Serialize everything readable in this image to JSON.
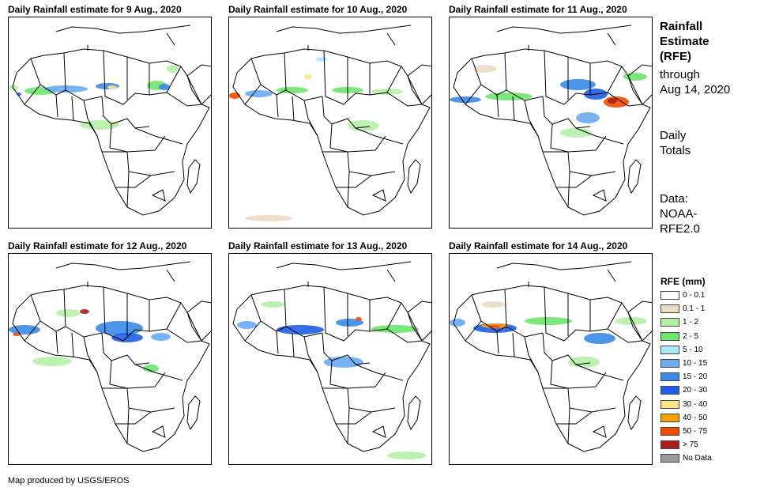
{
  "panels": [
    {
      "title": "Daily Rainfall estimate for 9 Aug., 2020"
    },
    {
      "title": "Daily Rainfall estimate for 10 Aug., 2020"
    },
    {
      "title": "Daily Rainfall estimate for 11 Aug., 2020"
    },
    {
      "title": "Daily Rainfall estimate for 12 Aug., 2020"
    },
    {
      "title": "Daily Rainfall estimate for 13 Aug., 2020"
    },
    {
      "title": "Daily Rainfall estimate for 14 Aug., 2020"
    }
  ],
  "side": {
    "title_lines": [
      "Rainfall",
      "Estimate",
      "(RFE)"
    ],
    "through_lines": [
      "through",
      "Aug 14, 2020"
    ],
    "totals_lines": [
      "Daily",
      "Totals"
    ],
    "data_lines": [
      "Data:",
      "NOAA-",
      "RFE2.0"
    ]
  },
  "legend": {
    "title": "RFE (mm)",
    "items": [
      {
        "label": "0 - 0.1",
        "color": "#ffffff"
      },
      {
        "label": "0.1 - 1",
        "color": "#ecdcc4"
      },
      {
        "label": "1 - 2",
        "color": "#b6f0a8"
      },
      {
        "label": "2 - 5",
        "color": "#6ee66e"
      },
      {
        "label": "5 - 10",
        "color": "#aeeaf6"
      },
      {
        "label": "10 - 15",
        "color": "#6aaaf2"
      },
      {
        "label": "15 - 20",
        "color": "#3a8ae6"
      },
      {
        "label": "20 - 30",
        "color": "#1e5ee6"
      },
      {
        "label": "30 - 40",
        "color": "#fae68c"
      },
      {
        "label": "40 - 50",
        "color": "#f6a200"
      },
      {
        "label": "50 - 75",
        "color": "#f24a00"
      },
      {
        "label": "> 75",
        "color": "#a81e1e"
      },
      {
        "label": "No Data",
        "color": "#9a9a9a"
      }
    ]
  },
  "credit": "Map produced by USGS/EROS"
}
